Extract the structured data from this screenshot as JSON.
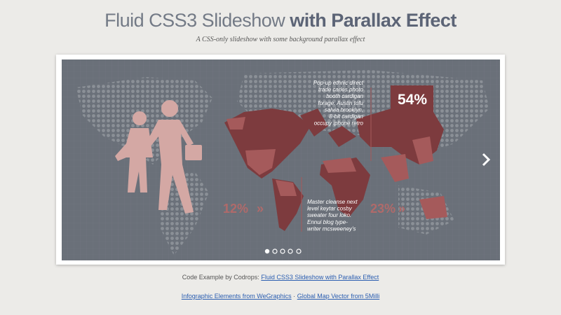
{
  "header": {
    "title_light": "Fluid CSS3 Slideshow",
    "title_bold": "with Parallax Effect",
    "subtitle": "A CSS-only slideshow with some background parallax effect"
  },
  "slide": {
    "stat_top": "54%",
    "stat_left": "12%",
    "stat_right": "23%",
    "text_top": [
      "Pop-up ethnic direct",
      "trade carles photo",
      "booth cardigan",
      "forage. Austin tofu",
      "salvia brooklyn,",
      "8-bit cardigan",
      "occupy iphone retro"
    ],
    "text_bottom": [
      "Master cleanse next",
      "level keytar cosby",
      "sweater four loko.",
      "Ennui blog type-",
      "writer  mcsweeney's"
    ]
  },
  "footer": {
    "credit": "Code Example by Codrops:",
    "credit_link": "Fluid CSS3 Slideshow with Parallax Effect",
    "link_infographic": "Infographic Elements from WeGraphics",
    "separator": "·",
    "link_map": "Global Map Vector from 5Milli"
  }
}
